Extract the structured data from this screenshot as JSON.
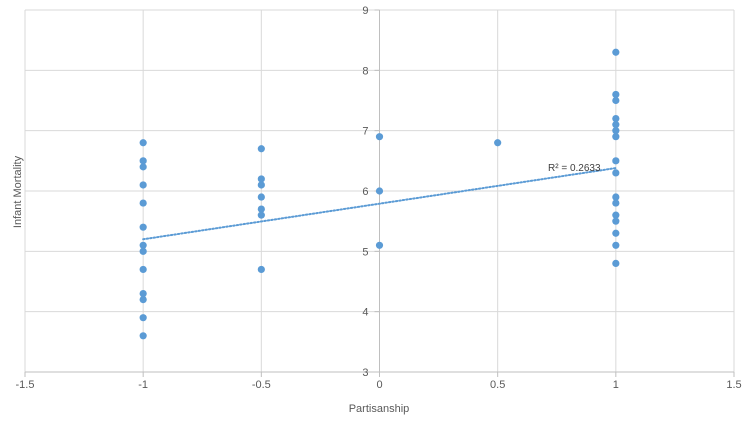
{
  "chart_data": {
    "type": "scatter",
    "title": "",
    "xlabel": "Partisanship",
    "ylabel": "Infant Mortality",
    "xlim": [
      -1.5,
      1.5
    ],
    "ylim": [
      3,
      9
    ],
    "x_ticks": [
      "-1.5",
      "-1",
      "-0.5",
      "0",
      "0.5",
      "1",
      "1.5"
    ],
    "y_ticks": [
      "3",
      "4",
      "5",
      "6",
      "7",
      "8",
      "9"
    ],
    "grid": true,
    "legend": "none",
    "marker_color": "#5B9BD5",
    "trendline": {
      "type": "linear",
      "color": "#5B9BD5",
      "style": "dotted",
      "x_range": [
        -1,
        1
      ],
      "y_at_start": 5.2,
      "y_at_end": 6.38,
      "label": "R² = 0.2633"
    },
    "points": [
      {
        "x": -1,
        "y": 6.8
      },
      {
        "x": -1,
        "y": 6.5
      },
      {
        "x": -1,
        "y": 6.4
      },
      {
        "x": -1,
        "y": 6.1
      },
      {
        "x": -1,
        "y": 5.8
      },
      {
        "x": -1,
        "y": 5.4
      },
      {
        "x": -1,
        "y": 5.1
      },
      {
        "x": -1,
        "y": 5.0
      },
      {
        "x": -1,
        "y": 4.7
      },
      {
        "x": -1,
        "y": 4.3
      },
      {
        "x": -1,
        "y": 4.2
      },
      {
        "x": -1,
        "y": 3.9
      },
      {
        "x": -1,
        "y": 3.6
      },
      {
        "x": -0.5,
        "y": 6.7
      },
      {
        "x": -0.5,
        "y": 6.2
      },
      {
        "x": -0.5,
        "y": 6.1
      },
      {
        "x": -0.5,
        "y": 5.9
      },
      {
        "x": -0.5,
        "y": 5.7
      },
      {
        "x": -0.5,
        "y": 5.6
      },
      {
        "x": -0.5,
        "y": 4.7
      },
      {
        "x": 0,
        "y": 6.9
      },
      {
        "x": 0,
        "y": 6.0
      },
      {
        "x": 0,
        "y": 5.1
      },
      {
        "x": 0.5,
        "y": 6.8
      },
      {
        "x": 1,
        "y": 8.3
      },
      {
        "x": 1,
        "y": 7.6
      },
      {
        "x": 1,
        "y": 7.5
      },
      {
        "x": 1,
        "y": 7.2
      },
      {
        "x": 1,
        "y": 7.1
      },
      {
        "x": 1,
        "y": 7.0
      },
      {
        "x": 1,
        "y": 6.9
      },
      {
        "x": 1,
        "y": 6.5
      },
      {
        "x": 1,
        "y": 6.3
      },
      {
        "x": 1,
        "y": 5.9
      },
      {
        "x": 1,
        "y": 5.8
      },
      {
        "x": 1,
        "y": 5.6
      },
      {
        "x": 1,
        "y": 5.5
      },
      {
        "x": 1,
        "y": 5.3
      },
      {
        "x": 1,
        "y": 5.1
      },
      {
        "x": 1,
        "y": 4.8
      }
    ]
  }
}
